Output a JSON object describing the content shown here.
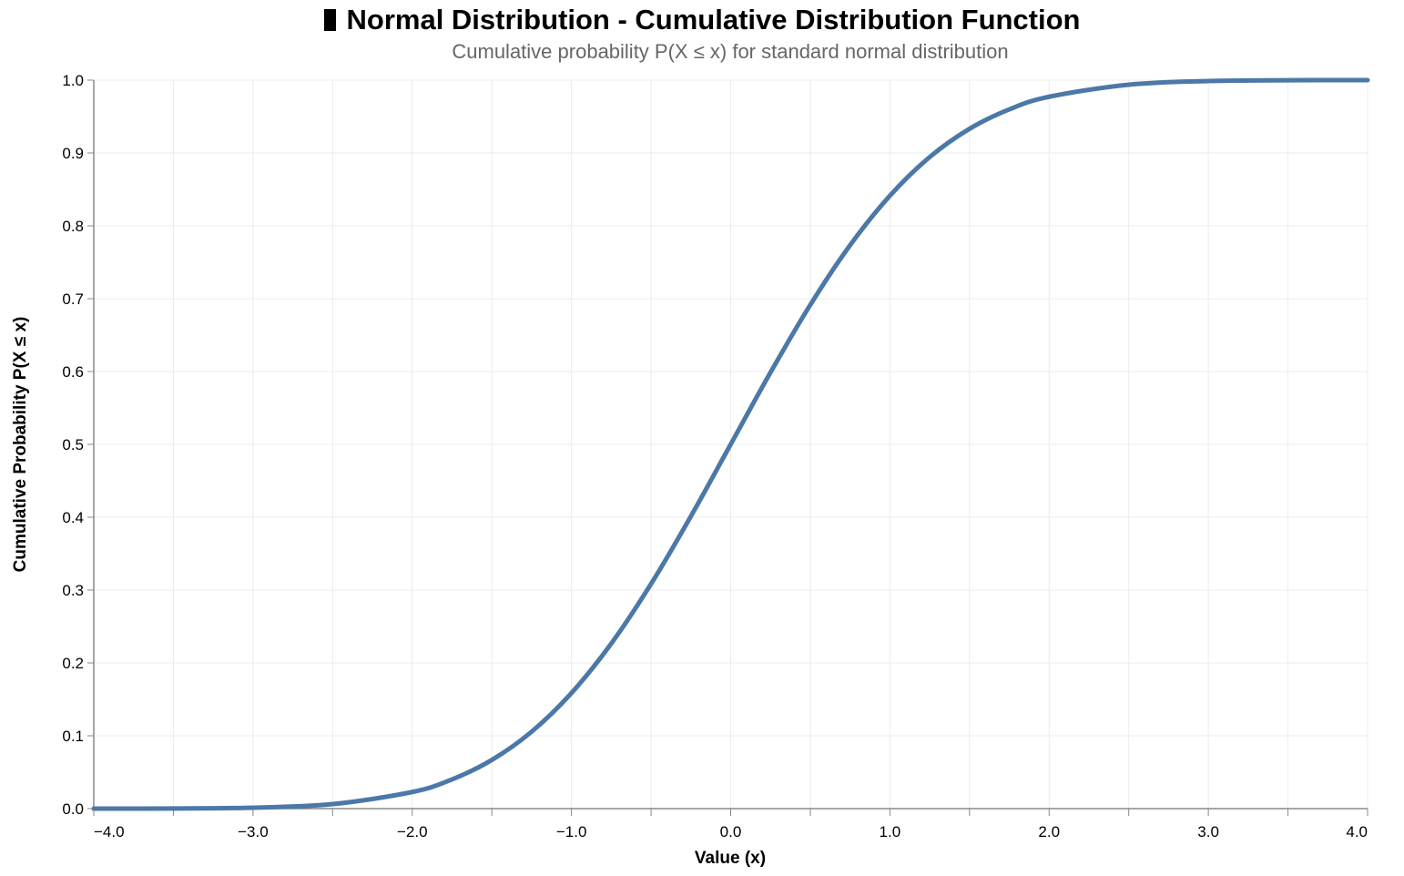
{
  "chart_data": {
    "type": "line",
    "title": "Normal Distribution - Cumulative Distribution Function",
    "subtitle": "Cumulative probability P(X ≤ x) for standard normal distribution",
    "title_icon": "chart-emoji-icon",
    "xlabel": "Value (x)",
    "ylabel": "Cumulative Probability P(X ≤ x)",
    "xlim": [
      -4.0,
      4.0
    ],
    "ylim": [
      0.0,
      1.0
    ],
    "x_tick_labels": [
      "−4.0",
      "−3.0",
      "−2.0",
      "−1.0",
      "0.0",
      "1.0",
      "2.0",
      "3.0",
      "4.0"
    ],
    "x_tick_values": [
      -4,
      -3,
      -2,
      -1,
      0,
      1,
      2,
      3,
      4
    ],
    "y_tick_labels": [
      "0.0",
      "0.1",
      "0.2",
      "0.3",
      "0.4",
      "0.5",
      "0.6",
      "0.7",
      "0.8",
      "0.9",
      "1.0"
    ],
    "y_tick_values": [
      0.0,
      0.1,
      0.2,
      0.3,
      0.4,
      0.5,
      0.6,
      0.7,
      0.8,
      0.9,
      1.0
    ],
    "grid": true,
    "line_color": "#4c78a8",
    "series": [
      {
        "x": [
          -4.0,
          -3.5,
          -3.0,
          -2.5,
          -2.0,
          -1.75,
          -1.5,
          -1.25,
          -1.0,
          -0.75,
          -0.5,
          -0.25,
          0.0,
          0.25,
          0.5,
          0.75,
          1.0,
          1.25,
          1.5,
          1.75,
          2.0,
          2.5,
          3.0,
          3.5,
          4.0
        ],
        "y": [
          3e-05,
          0.0002,
          0.0013,
          0.0062,
          0.0228,
          0.0401,
          0.0668,
          0.1056,
          0.1587,
          0.2266,
          0.3085,
          0.4013,
          0.5,
          0.5987,
          0.6915,
          0.7734,
          0.8413,
          0.8944,
          0.9332,
          0.9599,
          0.9772,
          0.9938,
          0.9987,
          0.9998,
          0.99997
        ]
      }
    ]
  }
}
